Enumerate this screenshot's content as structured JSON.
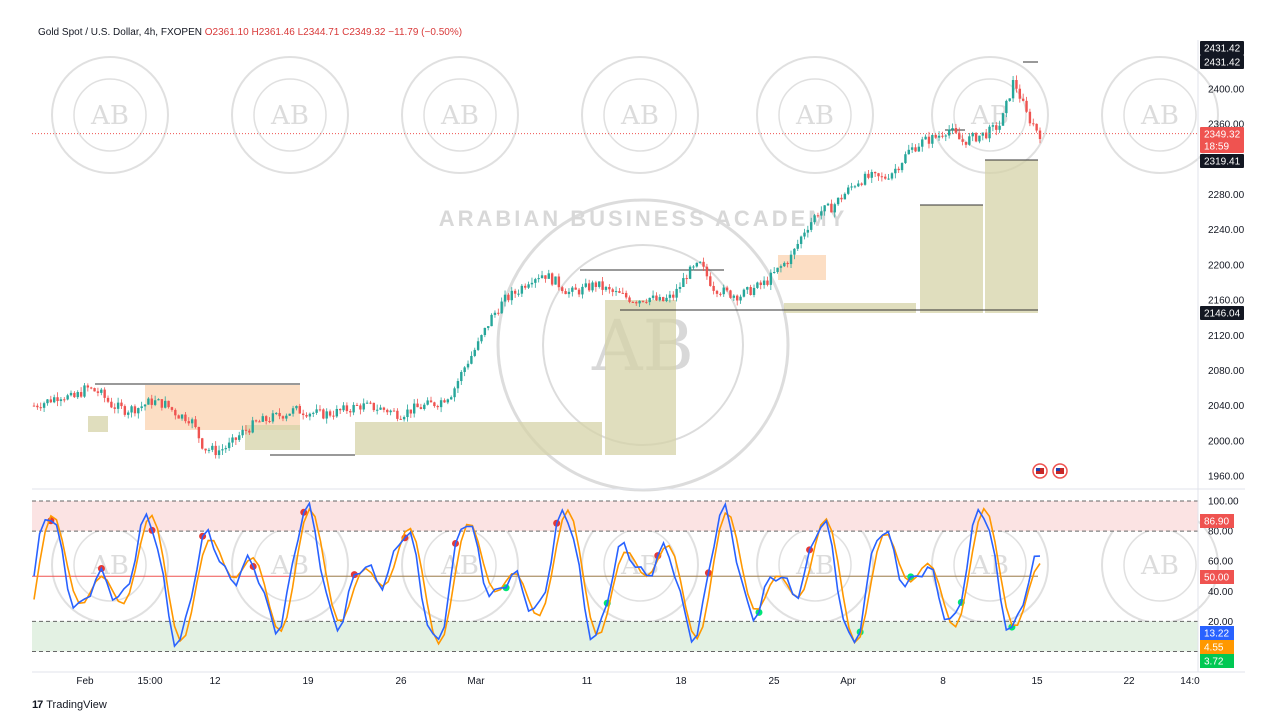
{
  "legend": {
    "symbol": "Gold Spot / U.S. Dollar, 4h, FXOPEN",
    "open": "O2361.10",
    "high": "H2361.46",
    "low": "L2344.71",
    "close": "C2349.32",
    "change": "−11.79 (−0.50%)"
  },
  "brand": {
    "name": "TradingView"
  },
  "watermark": {
    "text": "ARABIAN BUSINESS ACADEMY",
    "initials": "AB"
  },
  "colors": {
    "up": "#26a69a",
    "down": "#ef5350",
    "zone": "#d6d3a8",
    "supply": "#fbd3b0",
    "k_line": "#2962ff",
    "d_line": "#ff9800"
  },
  "chart_data": [
    {
      "type": "candlestick",
      "title": "Gold Spot / U.S. Dollar, 4h, FXOPEN",
      "x_ticks": [
        "Feb",
        "15:00",
        "12",
        "19",
        "26",
        "Mar",
        "11",
        "18",
        "25",
        "Apr",
        "8",
        "15",
        "22",
        "14:0"
      ],
      "y_ticks": [
        "2400.00",
        "2360.00",
        "2320.00",
        "2280.00",
        "2240.00",
        "2200.00",
        "2160.00",
        "2120.00",
        "2080.00",
        "2040.00",
        "2000.00",
        "1960.00"
      ],
      "ylim": [
        1955,
        2440
      ],
      "price_labels": [
        {
          "text": "2431.42",
          "value": 2431.42,
          "style": "dark"
        },
        {
          "text": "2431.42",
          "value": 2431.42,
          "style": "dark"
        },
        {
          "text": "2349.32",
          "value": 2349.32,
          "style": "red"
        },
        {
          "text": "18:59",
          "value": 2349.32,
          "style": "red-sub"
        },
        {
          "text": "2319.41",
          "value": 2319.41,
          "style": "dark"
        },
        {
          "text": "2146.04",
          "value": 2146.04,
          "style": "dark"
        }
      ],
      "trend_close": [
        2040,
        2045,
        2052,
        2048,
        2060,
        2055,
        2040,
        2035,
        2038,
        2045,
        2042,
        2030,
        2025,
        1992,
        1988,
        1995,
        2010,
        2020,
        2025,
        2030,
        2035,
        2033,
        2030,
        2032,
        2036,
        2040,
        2038,
        2035,
        2030,
        2036,
        2040,
        2044,
        2055,
        2085,
        2110,
        2140,
        2160,
        2170,
        2185,
        2190,
        2180,
        2168,
        2172,
        2178,
        2170,
        2165,
        2160,
        2163,
        2158,
        2165,
        2190,
        2200,
        2175,
        2168,
        2165,
        2172,
        2180,
        2195,
        2210,
        2240,
        2260,
        2265,
        2280,
        2295,
        2300,
        2298,
        2310,
        2330,
        2340,
        2345,
        2355,
        2340,
        2345,
        2350,
        2360,
        2410,
        2370,
        2349
      ],
      "indicator": {
        "name": "Stochastic",
        "levels": [
          100,
          80,
          50,
          20,
          0
        ],
        "y_ticks": [
          "100.00",
          "80.00",
          "60.00",
          "40.00",
          "20.00"
        ],
        "value_labels": [
          {
            "text": "86.90",
            "value": 86.9,
            "color": "#ef5350"
          },
          {
            "text": "50.00",
            "value": 50,
            "color": "#ef5350"
          },
          {
            "text": "13.22",
            "value": 13.22,
            "color": "#2962ff"
          },
          {
            "text": "4.55",
            "value": 4.55,
            "color": "#ff9800"
          },
          {
            "text": "3.72",
            "value": 3.72,
            "color": "#00c853"
          }
        ]
      }
    }
  ]
}
